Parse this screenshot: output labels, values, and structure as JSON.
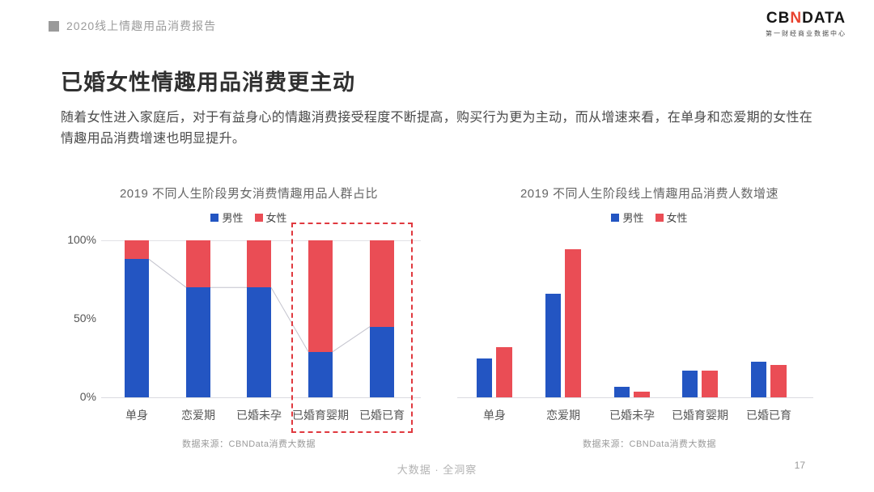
{
  "header": {
    "report_title": "2020线上情趣用品消费报告",
    "logo": {
      "text_cb": "CB",
      "text_n": "N",
      "text_data": "DATA",
      "subtitle": "第一财经商业数据中心"
    }
  },
  "page": {
    "title": "已婚女性情趣用品消费更主动",
    "body": "随着女性进入家庭后，对于有益身心的情趣消费接受程度不断提高，购买行为更为主动，而从增速来看，在单身和恋爱期的女性在情趣用品消费增速也明显提升。"
  },
  "colors": {
    "male": "#2355C2",
    "female": "#EA4D55",
    "highlight_box": "#E0393F",
    "grid": "#E2E2E6",
    "connector": "#C4C4CE",
    "axis": "#DBDBE0"
  },
  "chart_data": [
    {
      "type": "bar",
      "subtype": "stacked-100-percent",
      "title": "2019 不同人生阶段男女消费情趣用品人群占比",
      "categories": [
        "单身",
        "恋爱期",
        "已婚未孕",
        "已婚育婴期",
        "已婚已育"
      ],
      "series": [
        {
          "name": "男性",
          "color": "#2355C2",
          "values": [
            88,
            70,
            70,
            29,
            45
          ]
        },
        {
          "name": "女性",
          "color": "#EA4D55",
          "values": [
            12,
            30,
            30,
            71,
            55
          ]
        }
      ],
      "yticks": [
        {
          "label": "0%",
          "value": 0
        },
        {
          "label": "50%",
          "value": 50
        },
        {
          "label": "100%",
          "value": 100
        }
      ],
      "ylim": [
        0,
        100
      ],
      "legend_position": "top",
      "grid": "line at 100% and baseline at 0%",
      "connector": "thin gray line linking tops of male segments",
      "highlight": {
        "categories": [
          "已婚育婴期",
          "已婚已育"
        ],
        "style": "red dashed box"
      },
      "source": "数据来源：CBNData消费大数据"
    },
    {
      "type": "bar",
      "subtype": "grouped",
      "title": "2019 不同人生阶段线上情趣用品消费人数增速",
      "categories": [
        "单身",
        "恋爱期",
        "已婚未孕",
        "已婚育婴期",
        "已婚已育"
      ],
      "series": [
        {
          "name": "男性",
          "color": "#2355C2",
          "values": [
            26,
            70,
            7,
            18,
            24
          ]
        },
        {
          "name": "女性",
          "color": "#EA4D55",
          "values": [
            34,
            100,
            4,
            18,
            22
          ]
        }
      ],
      "yticks": [],
      "ylim": [
        0,
        100
      ],
      "y_axis_visible": false,
      "note": "no y-axis labels shown; values are relative heights with tallest bar = 100",
      "legend_position": "top",
      "source": "数据来源：CBNData消费大数据"
    }
  ],
  "footer": {
    "tagline": "大数据 · 全洞察",
    "page_number": "17"
  }
}
